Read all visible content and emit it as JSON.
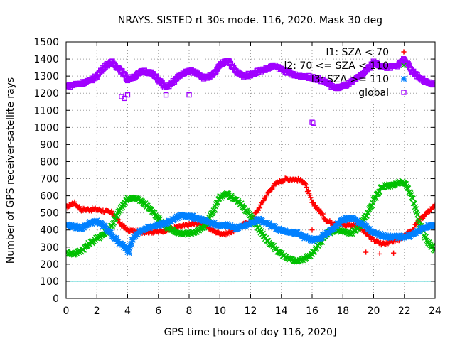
{
  "chart_data": {
    "type": "scatter",
    "title": "NRAYS. SISTED rt 30s mode. 116, 2020. Mask 30 deg",
    "xlabel": "GPS time [hours of doy 116, 2020]",
    "ylabel": "Number of GPS receiver-satellite rays",
    "xlim": [
      0,
      24
    ],
    "ylim": [
      0,
      1500
    ],
    "xticks": [
      "0",
      "2",
      "4",
      "6",
      "8",
      "10",
      "12",
      "14",
      "16",
      "18",
      "20",
      "22",
      "24"
    ],
    "yticks": [
      "0",
      "100",
      "200",
      "300",
      "400",
      "500",
      "600",
      "700",
      "800",
      "900",
      "1000",
      "1100",
      "1200",
      "1300",
      "1400",
      "1500"
    ],
    "grid": true,
    "legend_position": "top-right",
    "reference_line": {
      "y": 100,
      "color": "#00c0c0"
    },
    "series": [
      {
        "name": "l1: SZA < 70",
        "marker": "plus",
        "color": "#ff0000",
        "x": [
          0,
          0.5,
          1,
          1.5,
          2,
          2.5,
          3,
          3.5,
          4,
          4.5,
          5,
          5.5,
          6,
          6.5,
          7,
          7.5,
          8,
          8.5,
          9,
          9.5,
          10,
          10.5,
          11,
          11.5,
          12,
          12.5,
          13,
          13.5,
          14,
          14.5,
          15,
          15.5,
          16,
          16.5,
          17,
          17.5,
          18,
          18.5,
          19,
          19.5,
          20,
          20.5,
          21,
          21.5,
          22,
          22.5,
          23,
          23.5,
          24
        ],
        "y": [
          530,
          560,
          520,
          520,
          520,
          510,
          500,
          440,
          400,
          390,
          390,
          390,
          390,
          400,
          410,
          420,
          430,
          440,
          430,
          400,
          380,
          380,
          400,
          430,
          450,
          520,
          600,
          660,
          690,
          700,
          695,
          680,
          560,
          510,
          450,
          440,
          430,
          430,
          420,
          380,
          340,
          320,
          330,
          340,
          360,
          400,
          460,
          500,
          550
        ]
      },
      {
        "name": "l2: 70 <= SZA < 110",
        "marker": "x",
        "color": "#00c000",
        "x": [
          0,
          0.5,
          1,
          1.5,
          2,
          2.5,
          3,
          3.5,
          4,
          4.5,
          5,
          5.5,
          6,
          6.5,
          7,
          7.5,
          8,
          8.5,
          9,
          9.5,
          10,
          10.5,
          11,
          11.5,
          12,
          12.5,
          13,
          13.5,
          14,
          14.5,
          15,
          15.5,
          16,
          16.5,
          17,
          17.5,
          18,
          18.5,
          19,
          19.5,
          20,
          20.5,
          21,
          21.5,
          22,
          22.5,
          23,
          23.5,
          24
        ],
        "y": [
          270,
          260,
          280,
          320,
          350,
          380,
          430,
          520,
          580,
          590,
          560,
          520,
          470,
          420,
          390,
          380,
          380,
          390,
          420,
          500,
          590,
          610,
          580,
          540,
          480,
          410,
          350,
          300,
          260,
          230,
          220,
          230,
          260,
          320,
          380,
          400,
          390,
          380,
          410,
          480,
          570,
          650,
          660,
          670,
          680,
          590,
          440,
          330,
          280
        ]
      },
      {
        "name": "l3: SZA >= 110",
        "marker": "star",
        "color": "#0080ff",
        "x": [
          0,
          0.5,
          1,
          1.5,
          2,
          2.5,
          3,
          3.5,
          4,
          4.5,
          5,
          5.5,
          6,
          6.5,
          7,
          7.5,
          8,
          8.5,
          9,
          9.5,
          10,
          10.5,
          11,
          11.5,
          12,
          12.5,
          13,
          13.5,
          14,
          14.5,
          15,
          15.5,
          16,
          16.5,
          17,
          17.5,
          18,
          18.5,
          19,
          19.5,
          20,
          20.5,
          21,
          21.5,
          22,
          22.5,
          23,
          23.5,
          24
        ],
        "y": [
          430,
          420,
          410,
          440,
          450,
          420,
          370,
          320,
          290,
          370,
          400,
          420,
          430,
          440,
          460,
          490,
          480,
          470,
          450,
          440,
          420,
          430,
          410,
          420,
          440,
          460,
          440,
          420,
          400,
          390,
          380,
          360,
          340,
          350,
          380,
          420,
          460,
          470,
          450,
          420,
          380,
          370,
          360,
          360,
          360,
          370,
          400,
          420,
          430
        ]
      },
      {
        "name": "global",
        "marker": "square",
        "color": "#a000ff",
        "x": [
          0,
          0.5,
          1,
          1.5,
          2,
          2.5,
          3,
          3.5,
          4,
          4.5,
          5,
          5.5,
          6,
          6.5,
          7,
          7.5,
          8,
          8.5,
          9,
          9.5,
          10,
          10.5,
          11,
          11.5,
          12,
          12.5,
          13,
          13.5,
          14,
          14.5,
          15,
          15.5,
          16,
          16.5,
          17,
          17.5,
          18,
          18.5,
          19,
          19.5,
          20,
          20.5,
          21,
          21.5,
          22,
          22.5,
          23,
          23.5,
          24
        ],
        "y": [
          1240,
          1250,
          1260,
          1270,
          1300,
          1360,
          1380,
          1340,
          1280,
          1300,
          1330,
          1320,
          1280,
          1230,
          1270,
          1310,
          1330,
          1320,
          1290,
          1300,
          1360,
          1400,
          1330,
          1300,
          1310,
          1330,
          1340,
          1360,
          1340,
          1320,
          1300,
          1300,
          1290,
          1280,
          1260,
          1230,
          1240,
          1260,
          1290,
          1330,
          1380,
          1360,
          1350,
          1360,
          1400,
          1330,
          1290,
          1260,
          1250
        ]
      }
    ],
    "outliers": [
      {
        "series": "global",
        "x": [
          3.6,
          3.8,
          4.0,
          6.5,
          8.0,
          16.0,
          16.1
        ],
        "y": [
          1180,
          1170,
          1190,
          1190,
          1190,
          1030,
          1025
        ]
      },
      {
        "series": "l1: SZA < 70",
        "x": [
          16.0,
          19.5,
          20.4,
          21.3
        ],
        "y": [
          400,
          270,
          260,
          265
        ]
      },
      {
        "series": "l3: SZA >= 110",
        "x": [
          4.0,
          4.1
        ],
        "y": [
          270,
          265
        ]
      }
    ]
  }
}
